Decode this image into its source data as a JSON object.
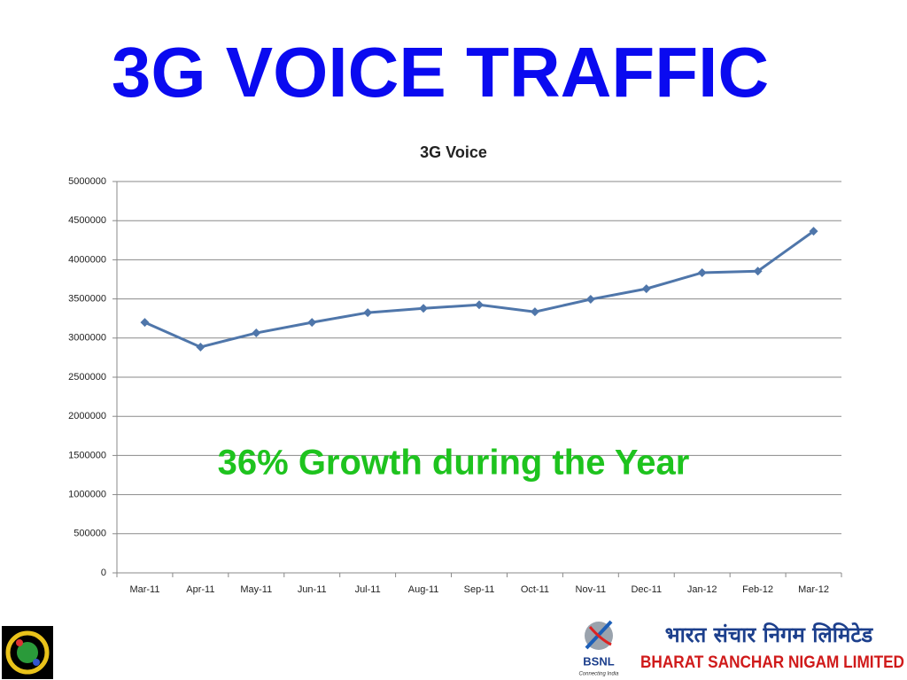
{
  "slide_title": "3G VOICE TRAFFIC",
  "chart_data": {
    "type": "line",
    "title": "3G Voice",
    "categories": [
      "Mar-11",
      "Apr-11",
      "May-11",
      "Jun-11",
      "Jul-11",
      "Aug-11",
      "Sep-11",
      "Oct-11",
      "Nov-11",
      "Dec-11",
      "Jan-12",
      "Feb-12",
      "Mar-12"
    ],
    "values": [
      3200000,
      2885000,
      3065000,
      3200000,
      3325000,
      3380000,
      3425000,
      3335000,
      3495000,
      3630000,
      3835000,
      3855000,
      4365000
    ],
    "color": "#4f76aa",
    "ylim": [
      0,
      5000000
    ],
    "yticks": [
      0,
      500000,
      1000000,
      1500000,
      2000000,
      2500000,
      3000000,
      3500000,
      4000000,
      4500000,
      5000000
    ],
    "grid": true,
    "annotation": "36% Growth during the Year"
  },
  "footer": {
    "brand_hindi": "भारत संचार निगम लिमिटेड",
    "brand": "BHARAT SANCHAR NIGAM LIMITED",
    "logo_text": "BSNL",
    "tagline": "Connecting India"
  }
}
